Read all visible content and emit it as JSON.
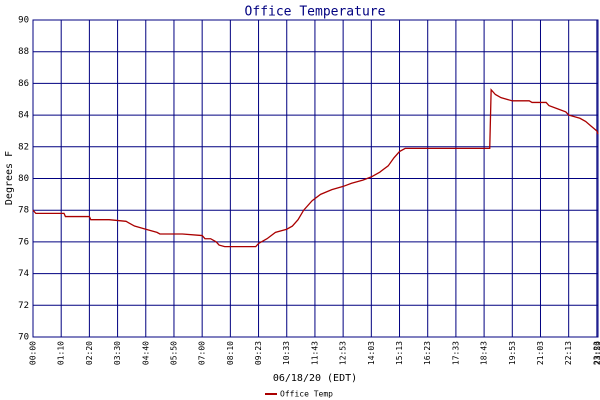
{
  "chart_data": {
    "type": "line",
    "title": "Office Temperature",
    "x_label": "06/18/20 (EDT)",
    "y_label": "Degrees F",
    "xlim": [
      0,
      20.04
    ],
    "ylim": [
      70,
      90
    ],
    "xticks": [
      {
        "value": 0,
        "label": "00:00"
      },
      {
        "value": 1,
        "label": "01:10"
      },
      {
        "value": 2,
        "label": "02:20"
      },
      {
        "value": 3,
        "label": "03:30"
      },
      {
        "value": 4,
        "label": "04:40"
      },
      {
        "value": 5,
        "label": "05:50"
      },
      {
        "value": 6,
        "label": "07:00"
      },
      {
        "value": 7,
        "label": "08:10"
      },
      {
        "value": 8,
        "label": "09:23"
      },
      {
        "value": 9,
        "label": "10:33"
      },
      {
        "value": 10,
        "label": "11:43"
      },
      {
        "value": 11,
        "label": "12:53"
      },
      {
        "value": 12,
        "label": "14:03"
      },
      {
        "value": 13,
        "label": "15:13"
      },
      {
        "value": 14,
        "label": "16:23"
      },
      {
        "value": 15,
        "label": "17:33"
      },
      {
        "value": 16,
        "label": "18:43"
      },
      {
        "value": 17,
        "label": "19:53"
      },
      {
        "value": 18,
        "label": "21:03"
      },
      {
        "value": 19,
        "label": "22:13"
      },
      {
        "value": 20,
        "label": "23:23"
      },
      {
        "value": 20.04,
        "label": "23:59"
      }
    ],
    "yticks": [
      70,
      72,
      74,
      76,
      78,
      80,
      82,
      84,
      86,
      88,
      90
    ],
    "grid": true,
    "legend": "bottom",
    "x": [
      0,
      0.1,
      1.1,
      1.15,
      2.0,
      2.05,
      2.7,
      3.3,
      3.4,
      3.6,
      3.8,
      4.0,
      4.4,
      4.5,
      5.3,
      6.0,
      6.1,
      6.3,
      6.5,
      6.6,
      6.8,
      7.9,
      8.0,
      8.3,
      8.6,
      9.0,
      9.2,
      9.4,
      9.6,
      9.9,
      10.2,
      10.6,
      11.0,
      11.3,
      11.7,
      12.0,
      12.3,
      12.6,
      12.8,
      13.0,
      13.2,
      16.2,
      16.25,
      16.4,
      16.6,
      17.0,
      17.6,
      17.7,
      18.2,
      18.3,
      18.6,
      18.9,
      19.0,
      19.4,
      19.6,
      19.8,
      20.0,
      20.04
    ],
    "series": [
      {
        "name": "Office Temp",
        "color": "#aa0000",
        "values": [
          78.0,
          77.8,
          77.8,
          77.6,
          77.6,
          77.4,
          77.4,
          77.3,
          77.2,
          77.0,
          76.9,
          76.8,
          76.6,
          76.5,
          76.5,
          76.4,
          76.2,
          76.2,
          76.0,
          75.8,
          75.7,
          75.7,
          75.9,
          76.2,
          76.6,
          76.8,
          77.0,
          77.4,
          78.0,
          78.6,
          79.0,
          79.3,
          79.5,
          79.7,
          79.9,
          80.1,
          80.4,
          80.8,
          81.3,
          81.7,
          81.9,
          81.9,
          85.6,
          85.3,
          85.1,
          84.9,
          84.9,
          84.8,
          84.8,
          84.6,
          84.4,
          84.2,
          84.0,
          83.8,
          83.6,
          83.3,
          83.0,
          82.8
        ]
      }
    ]
  }
}
